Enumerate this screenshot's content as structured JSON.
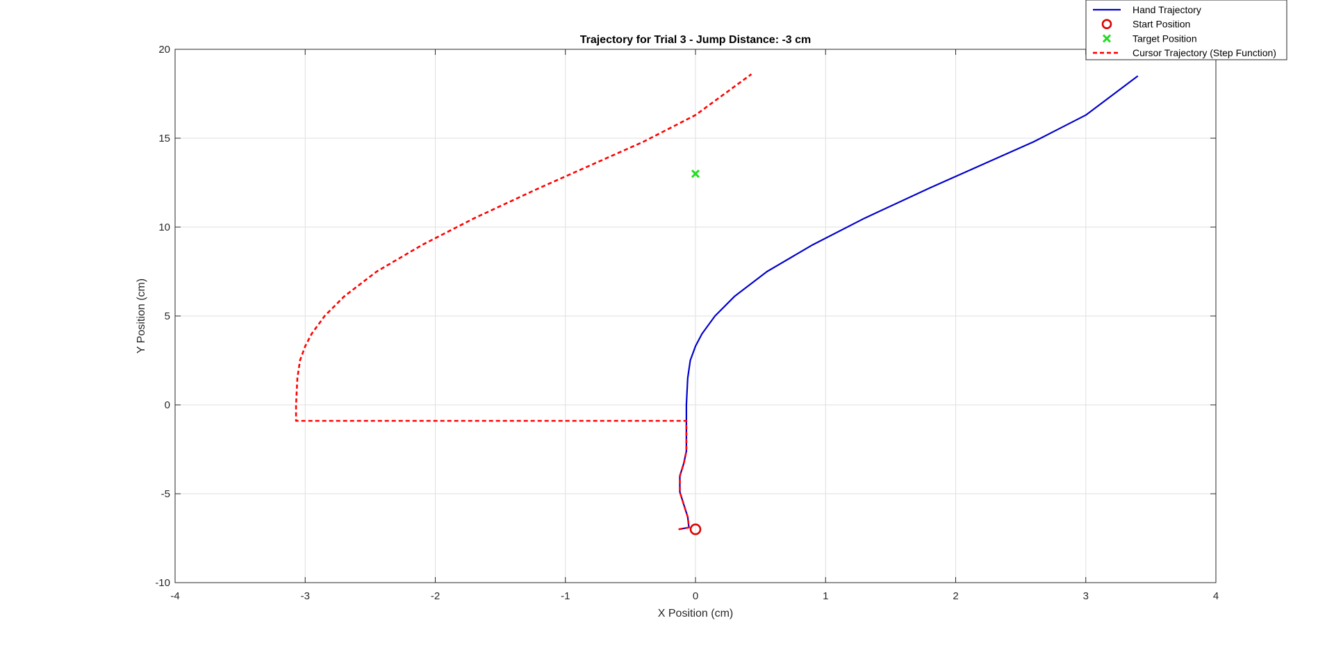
{
  "chart_data": {
    "type": "line",
    "title": "Trajectory for Trial 3 - Jump Distance: -3 cm",
    "xlabel": "X Position (cm)",
    "ylabel": "Y Position (cm)",
    "xlim": [
      -4,
      4
    ],
    "ylim": [
      -10,
      20
    ],
    "xticks": [
      -4,
      -3,
      -2,
      -1,
      0,
      1,
      2,
      3,
      4
    ],
    "yticks": [
      -10,
      -5,
      0,
      5,
      10,
      15,
      20
    ],
    "grid": true,
    "legend_position": "top-right",
    "series": [
      {
        "name": "Hand Trajectory",
        "style": "solid-line",
        "color": "#0000cc",
        "points": [
          [
            -0.13,
            -7.0
          ],
          [
            -0.05,
            -6.9
          ],
          [
            -0.06,
            -6.3
          ],
          [
            -0.09,
            -5.6
          ],
          [
            -0.12,
            -4.9
          ],
          [
            -0.12,
            -4.0
          ],
          [
            -0.09,
            -3.3
          ],
          [
            -0.07,
            -2.6
          ],
          [
            -0.07,
            -1.5
          ],
          [
            -0.07,
            0.0
          ],
          [
            -0.06,
            1.5
          ],
          [
            -0.04,
            2.5
          ],
          [
            0.0,
            3.3
          ],
          [
            0.05,
            4.0
          ],
          [
            0.15,
            5.0
          ],
          [
            0.3,
            6.1
          ],
          [
            0.55,
            7.5
          ],
          [
            0.9,
            9.0
          ],
          [
            1.3,
            10.5
          ],
          [
            1.8,
            12.2
          ],
          [
            2.2,
            13.5
          ],
          [
            2.6,
            14.8
          ],
          [
            3.0,
            16.3
          ],
          [
            3.4,
            18.5
          ]
        ]
      },
      {
        "name": "Start Position",
        "style": "circle-marker",
        "color": "#dd0000",
        "points": [
          [
            0,
            -7
          ]
        ]
      },
      {
        "name": "Target Position",
        "style": "x-marker",
        "color": "#22dd22",
        "points": [
          [
            0,
            13
          ]
        ]
      },
      {
        "name": "Cursor Trajectory (Step Function)",
        "style": "dashed-line",
        "color": "#ff0000",
        "points": [
          [
            -0.13,
            -7.0
          ],
          [
            -0.05,
            -6.9
          ],
          [
            -0.06,
            -6.3
          ],
          [
            -0.09,
            -5.6
          ],
          [
            -0.12,
            -4.9
          ],
          [
            -0.12,
            -4.0
          ],
          [
            -0.09,
            -3.3
          ],
          [
            -0.07,
            -2.6
          ],
          [
            -0.07,
            -0.9
          ],
          [
            -3.07,
            -0.9
          ],
          [
            -3.07,
            0.0
          ],
          [
            -3.06,
            1.5
          ],
          [
            -3.04,
            2.5
          ],
          [
            -3.0,
            3.3
          ],
          [
            -2.95,
            4.0
          ],
          [
            -2.85,
            5.0
          ],
          [
            -2.7,
            6.1
          ],
          [
            -2.45,
            7.5
          ],
          [
            -2.1,
            9.0
          ],
          [
            -1.7,
            10.5
          ],
          [
            -1.2,
            12.2
          ],
          [
            -0.8,
            13.5
          ],
          [
            -0.4,
            14.8
          ],
          [
            0.0,
            16.3
          ],
          [
            0.43,
            18.6
          ]
        ]
      }
    ]
  },
  "colors": {
    "axis": "#262626",
    "grid": "#dfdfdf",
    "background": "#ffffff"
  }
}
